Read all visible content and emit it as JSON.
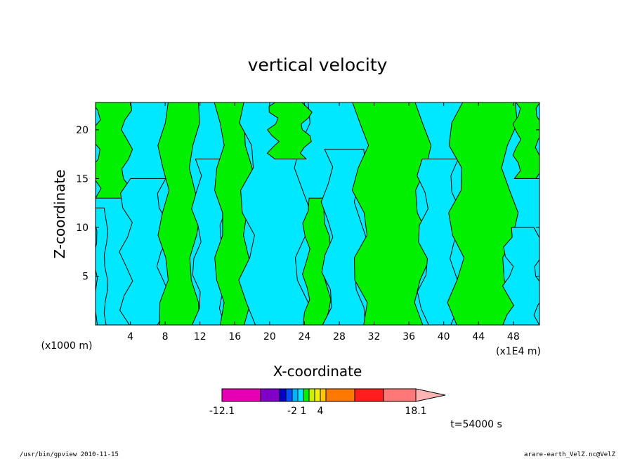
{
  "chart_data": {
    "type": "heatmap",
    "title": "vertical velocity",
    "xlabel": "X-coordinate",
    "ylabel": "Z-coordinate",
    "x_unit_left": "(x1000 m)",
    "x_unit_right": "(x1E4 m)",
    "xlim": [
      0,
      51
    ],
    "ylim": [
      0,
      22.8
    ],
    "x_ticks": [
      "4",
      "8",
      "12",
      "16",
      "20",
      "24",
      "28",
      "32",
      "36",
      "40",
      "44",
      "48"
    ],
    "y_ticks": [
      "5",
      "10",
      "15",
      "20"
    ],
    "field_colors": {
      "negative": "#00e8ff",
      "positive": "#00f000",
      "contour": "#000000"
    },
    "regions": [
      {
        "level": "positive",
        "x": [
          0,
          3.6
        ],
        "z": [
          13,
          23
        ]
      },
      {
        "level": "negative",
        "x": [
          0,
          1.2
        ],
        "z": [
          0,
          12
        ]
      },
      {
        "level": "negative",
        "x": [
          3.5,
          7.8
        ],
        "z": [
          0,
          15
        ]
      },
      {
        "level": "positive",
        "x": [
          7.8,
          11.4
        ],
        "z": [
          0,
          23
        ]
      },
      {
        "level": "negative",
        "x": [
          11.6,
          14.8
        ],
        "z": [
          0,
          17
        ]
      },
      {
        "level": "positive",
        "x": [
          14.2,
          17.6
        ],
        "z": [
          0,
          23
        ]
      },
      {
        "level": "negative",
        "x": [
          17.4,
          23.8
        ],
        "z": [
          0,
          23
        ]
      },
      {
        "level": "positive",
        "x": [
          20.4,
          24.2
        ],
        "z": [
          17,
          23
        ]
      },
      {
        "level": "positive",
        "x": [
          24.2,
          26.6
        ],
        "z": [
          0,
          13
        ]
      },
      {
        "level": "negative",
        "x": [
          26.6,
          30.4
        ],
        "z": [
          0,
          18
        ]
      },
      {
        "level": "positive",
        "x": [
          30.4,
          37.6
        ],
        "z": [
          0,
          23
        ]
      },
      {
        "level": "negative",
        "x": [
          37.6,
          41.4
        ],
        "z": [
          0,
          17
        ]
      },
      {
        "level": "positive",
        "x": [
          41.4,
          47.6
        ],
        "z": [
          0,
          23
        ]
      },
      {
        "level": "negative",
        "x": [
          47.4,
          51
        ],
        "z": [
          0,
          10
        ]
      },
      {
        "level": "positive",
        "x": [
          48.4,
          51
        ],
        "z": [
          15,
          23
        ]
      }
    ],
    "colorbar": {
      "colors": [
        "#e600b4",
        "#8000c8",
        "#0000c8",
        "#0050ff",
        "#00b4ff",
        "#00e8ff",
        "#00f000",
        "#c8f000",
        "#f0f000",
        "#ffc800",
        "#ff7800",
        "#ff1e1e",
        "#ff7878",
        "#ffb4b4"
      ],
      "labels": [
        "-12.1",
        "-2",
        "1",
        "4",
        "18.1"
      ]
    },
    "time_label": "t=54000 s"
  },
  "footer": {
    "left": "/usr/bin/gpview   2010-11-15",
    "right": "arare-earth_VelZ.nc@VelZ"
  }
}
